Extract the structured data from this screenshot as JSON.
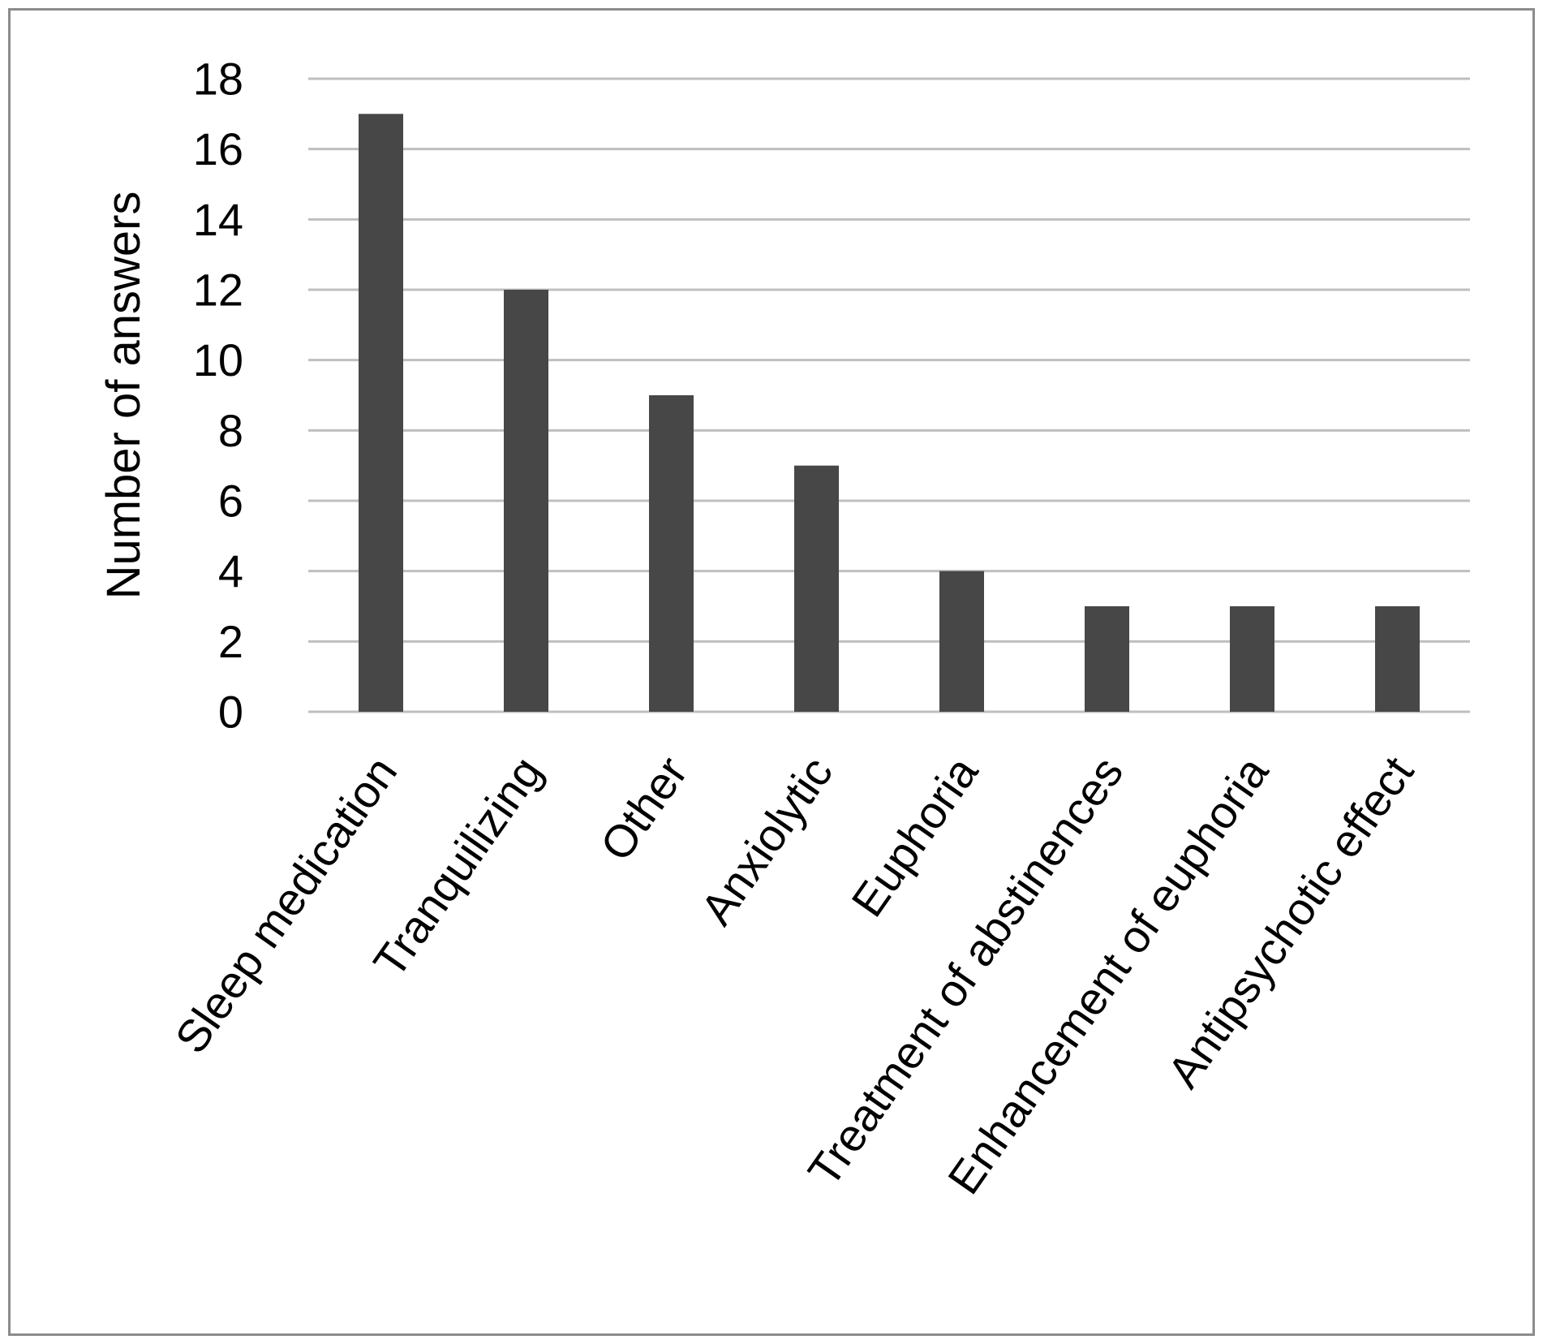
{
  "chart_data": {
    "type": "bar",
    "title": "",
    "xlabel": "",
    "ylabel": "Number  of answers",
    "categories": [
      "Sleep medication",
      "Tranquilizing",
      "Other",
      "Anxiolytic",
      "Euphoria",
      "Treatment of abstinences",
      "Enhancement of euphoria",
      "Antipsychotic effect"
    ],
    "values": [
      17,
      12,
      9,
      7,
      4,
      3,
      3,
      3
    ],
    "ylim": [
      0,
      18
    ],
    "yticks": [
      "0",
      "2",
      "4",
      "6",
      "8",
      "10",
      "12",
      "14",
      "16",
      "18"
    ],
    "grid": true,
    "legend": "none",
    "colors": {
      "bar": "#474747",
      "grid": "#bfbfbf",
      "border": "#8c8c8c",
      "text": "#000000"
    }
  }
}
